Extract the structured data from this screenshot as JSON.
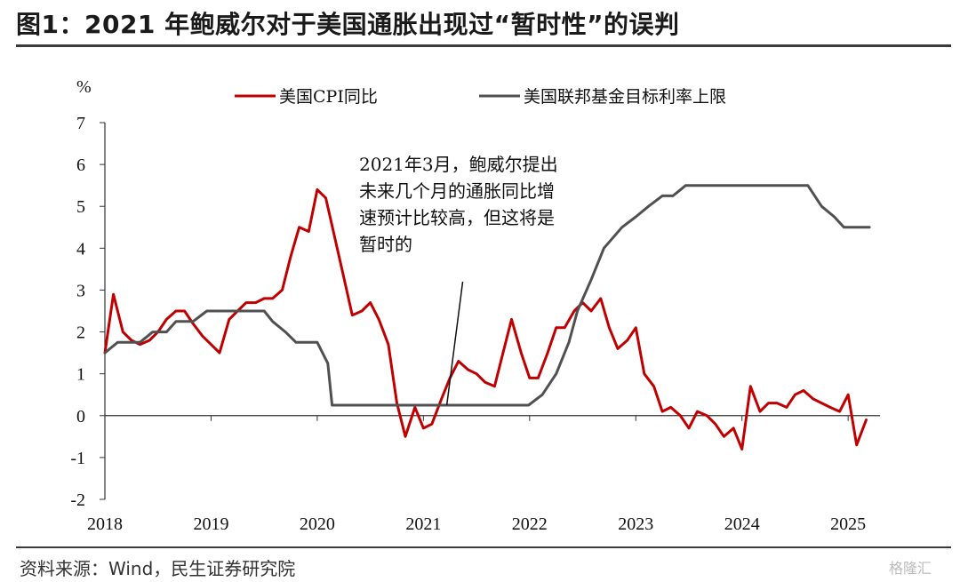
{
  "header": {
    "title": "图1：2021 年鲍威尔对于美国通胀出现过“暂时性”的误判"
  },
  "footer": {
    "source": "资料来源：Wind，民生证券研究院",
    "watermark": "格隆汇"
  },
  "chart_data": {
    "type": "line",
    "ylabel": "%",
    "ylim": [
      -2,
      7
    ],
    "yticks": [
      "7",
      "6",
      "5",
      "4",
      "3",
      "2",
      "1",
      "0",
      "-1",
      "-2"
    ],
    "xlim": [
      2018.0,
      2025.3
    ],
    "xticks": [
      "2018",
      "2019",
      "2020",
      "2021",
      "2022",
      "2023",
      "2024",
      "2025"
    ],
    "grid": false,
    "legend_position": "top",
    "series": [
      {
        "name": "美国CPI同比",
        "color": "#c00000",
        "points": [
          [
            2018.0,
            1.5
          ],
          [
            2018.08,
            2.9
          ],
          [
            2018.17,
            2.0
          ],
          [
            2018.25,
            1.8
          ],
          [
            2018.33,
            1.7
          ],
          [
            2018.42,
            1.8
          ],
          [
            2018.5,
            2.0
          ],
          [
            2018.58,
            2.3
          ],
          [
            2018.67,
            2.5
          ],
          [
            2018.75,
            2.5
          ],
          [
            2018.83,
            2.2
          ],
          [
            2018.92,
            1.9
          ],
          [
            2019.0,
            1.7
          ],
          [
            2019.08,
            1.5
          ],
          [
            2019.17,
            2.3
          ],
          [
            2019.25,
            2.5
          ],
          [
            2019.33,
            2.7
          ],
          [
            2019.42,
            2.7
          ],
          [
            2019.5,
            2.8
          ],
          [
            2019.58,
            2.8
          ],
          [
            2019.67,
            3.0
          ],
          [
            2019.75,
            3.8
          ],
          [
            2019.83,
            4.5
          ],
          [
            2019.92,
            4.4
          ],
          [
            2020.0,
            5.4
          ],
          [
            2020.08,
            5.2
          ],
          [
            2020.17,
            4.2
          ],
          [
            2020.25,
            3.3
          ],
          [
            2020.33,
            2.4
          ],
          [
            2020.42,
            2.5
          ],
          [
            2020.5,
            2.7
          ],
          [
            2020.58,
            2.3
          ],
          [
            2020.67,
            1.7
          ],
          [
            2020.75,
            0.3
          ],
          [
            2020.83,
            -0.5
          ],
          [
            2020.92,
            0.2
          ],
          [
            2021.0,
            -0.3
          ],
          [
            2021.08,
            -0.2
          ],
          [
            2021.17,
            0.4
          ],
          [
            2021.25,
            0.9
          ],
          [
            2021.33,
            1.3
          ],
          [
            2021.42,
            1.1
          ],
          [
            2021.5,
            1.0
          ],
          [
            2021.58,
            0.8
          ],
          [
            2021.67,
            0.7
          ],
          [
            2021.75,
            1.5
          ],
          [
            2021.83,
            2.3
          ],
          [
            2021.92,
            1.5
          ],
          [
            2022.0,
            0.9
          ],
          [
            2022.08,
            0.9
          ],
          [
            2022.17,
            1.5
          ],
          [
            2022.25,
            2.1
          ],
          [
            2022.33,
            2.1
          ],
          [
            2022.42,
            2.5
          ],
          [
            2022.5,
            2.7
          ],
          [
            2022.58,
            2.5
          ],
          [
            2022.67,
            2.8
          ],
          [
            2022.75,
            2.1
          ],
          [
            2022.83,
            1.6
          ],
          [
            2022.92,
            1.8
          ],
          [
            2023.0,
            2.1
          ],
          [
            2023.08,
            1.0
          ],
          [
            2023.17,
            0.7
          ],
          [
            2023.25,
            0.1
          ],
          [
            2023.33,
            0.2
          ],
          [
            2023.42,
            0.0
          ],
          [
            2023.5,
            -0.3
          ],
          [
            2023.58,
            0.1
          ],
          [
            2023.67,
            0.0
          ],
          [
            2023.75,
            -0.2
          ],
          [
            2023.83,
            -0.5
          ],
          [
            2023.92,
            -0.3
          ],
          [
            2024.0,
            -0.8
          ],
          [
            2024.08,
            0.7
          ],
          [
            2024.17,
            0.1
          ],
          [
            2024.25,
            0.3
          ],
          [
            2024.33,
            0.3
          ],
          [
            2024.42,
            0.2
          ],
          [
            2024.5,
            0.5
          ],
          [
            2024.58,
            0.6
          ],
          [
            2024.67,
            0.4
          ],
          [
            2024.75,
            0.3
          ],
          [
            2024.83,
            0.2
          ],
          [
            2024.92,
            0.1
          ],
          [
            2025.0,
            0.5
          ],
          [
            2025.08,
            -0.7
          ],
          [
            2025.17,
            -0.1
          ]
        ]
      },
      {
        "name": "美国联邦基金目标利率上限",
        "color": "#505050",
        "points": [
          [
            2018.0,
            1.5
          ],
          [
            2018.12,
            1.75
          ],
          [
            2018.25,
            1.75
          ],
          [
            2018.33,
            1.75
          ],
          [
            2018.45,
            2.0
          ],
          [
            2018.58,
            2.0
          ],
          [
            2018.67,
            2.25
          ],
          [
            2018.83,
            2.25
          ],
          [
            2018.96,
            2.5
          ],
          [
            2019.5,
            2.5
          ],
          [
            2019.58,
            2.25
          ],
          [
            2019.7,
            2.0
          ],
          [
            2019.8,
            1.75
          ],
          [
            2020.0,
            1.75
          ],
          [
            2020.1,
            1.25
          ],
          [
            2020.14,
            0.25
          ],
          [
            2021.0,
            0.25
          ],
          [
            2021.5,
            0.25
          ],
          [
            2021.99,
            0.25
          ],
          [
            2022.12,
            0.5
          ],
          [
            2022.25,
            1.0
          ],
          [
            2022.37,
            1.75
          ],
          [
            2022.45,
            2.5
          ],
          [
            2022.58,
            3.25
          ],
          [
            2022.7,
            4.0
          ],
          [
            2022.87,
            4.5
          ],
          [
            2023.0,
            4.75
          ],
          [
            2023.12,
            5.0
          ],
          [
            2023.25,
            5.25
          ],
          [
            2023.35,
            5.25
          ],
          [
            2023.47,
            5.5
          ],
          [
            2024.0,
            5.5
          ],
          [
            2024.62,
            5.5
          ],
          [
            2024.75,
            5.0
          ],
          [
            2024.87,
            4.75
          ],
          [
            2024.96,
            4.5
          ],
          [
            2025.2,
            4.5
          ]
        ]
      }
    ],
    "annotation": {
      "lines": [
        "2021年3月，鲍威尔提出",
        "未来几个月的通胀同比增",
        "速预计比较高，但这将是",
        "暂时的"
      ],
      "arrow_from": [
        2021.22,
        0.25
      ],
      "arrow_to": [
        2021.37,
        3.2
      ]
    }
  }
}
